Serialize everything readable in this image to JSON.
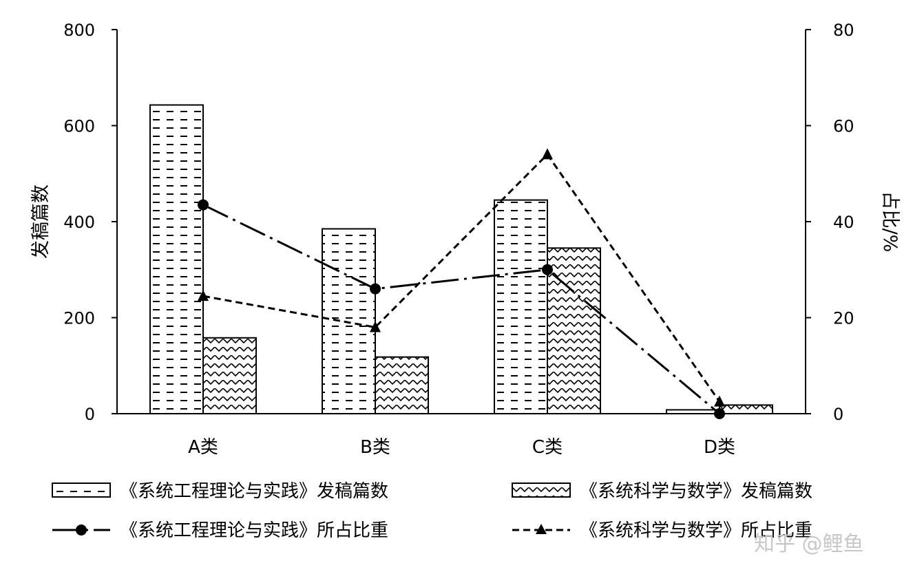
{
  "chart_data": {
    "type": "bar",
    "categories": [
      "A类",
      "B类",
      "C类",
      "D类"
    ],
    "ylabel": "发稿篇数",
    "y2label": "占比/%",
    "ylim": [
      0,
      800
    ],
    "y2lim": [
      0,
      80
    ],
    "yticks": [
      "0",
      "200",
      "400",
      "600",
      "800"
    ],
    "y2ticks": [
      "0",
      "20",
      "40",
      "60",
      "80"
    ],
    "grid": false,
    "legend_position": "bottom",
    "bar_series": [
      {
        "name": "《系统工程理论与实践》发稿篇数",
        "pattern": "dashed-horizontal",
        "values": [
          643,
          385,
          445,
          8
        ]
      },
      {
        "name": "《系统科学与数学》发稿篇数",
        "pattern": "diagonal-hatch",
        "values": [
          158,
          118,
          345,
          18
        ]
      }
    ],
    "line_series": [
      {
        "name": "《系统工程理论与实践》所占比重",
        "marker": "circle",
        "linestyle": "dash-dot",
        "values": [
          43.5,
          26,
          30,
          0
        ]
      },
      {
        "name": "《系统科学与数学》所占比重",
        "marker": "triangle",
        "linestyle": "dashed",
        "values": [
          24.5,
          18,
          54,
          2.5
        ]
      }
    ]
  },
  "watermark": "知乎 @鲤鱼"
}
